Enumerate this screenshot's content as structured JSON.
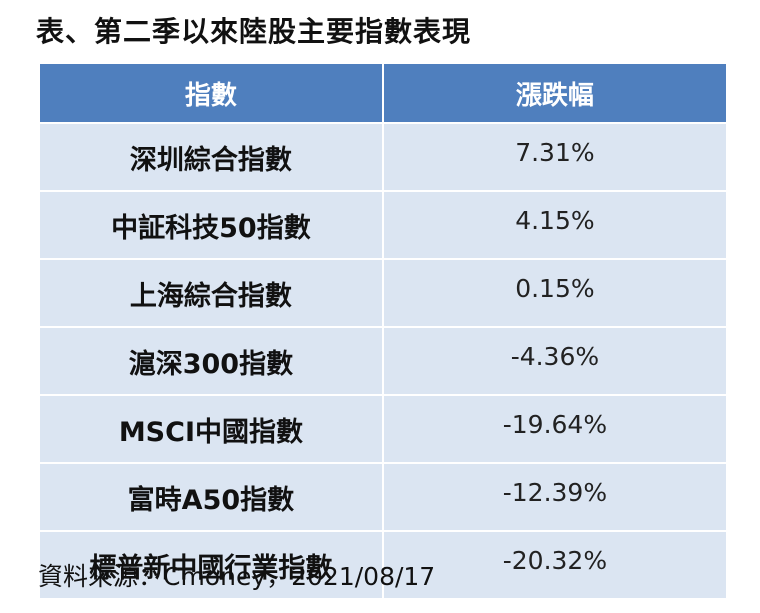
{
  "title": "表、第二季以來陸股主要指數表現",
  "table": {
    "headers": [
      "指數",
      "漲跌幅"
    ],
    "rows": [
      [
        "深圳綜合指數",
        "7.31%"
      ],
      [
        "中証科技50指數",
        "4.15%"
      ],
      [
        "上海綜合指數",
        "0.15%"
      ],
      [
        "滬深300指數",
        "-4.36%"
      ],
      [
        "MSCI中國指數",
        "-19.64%"
      ],
      [
        "富時A50指數",
        "-12.39%"
      ],
      [
        "標普新中國行業指數",
        "-20.32%"
      ]
    ]
  },
  "source": "資料來源：Cmoney，2021/08/17",
  "colors": {
    "header_bg": "#4f7fbe",
    "row_bg": "#dbe5f2",
    "border": "#ffffff"
  }
}
